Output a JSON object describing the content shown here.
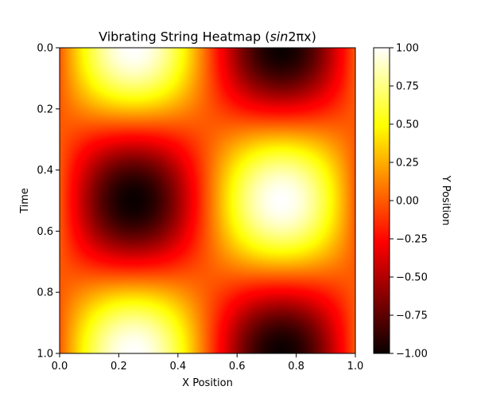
{
  "chart_data": {
    "type": "heatmap",
    "title_prefix": "Vibrating String Heatmap (",
    "title_math": "sin",
    "title_math2": "2πx",
    "title_suffix": ")",
    "xlabel": "X Position",
    "ylabel": "Time",
    "colorbar_label": "Y Position",
    "colormap": "hot",
    "function": "y = sin(2πx) · cos(2πt)",
    "xlim": [
      0.0,
      1.0
    ],
    "ylim": [
      1.0,
      0.0
    ],
    "clim": [
      -1.0,
      1.0
    ],
    "x_ticks": [
      "0.0",
      "0.2",
      "0.4",
      "0.6",
      "0.8",
      "1.0"
    ],
    "x_tick_values": [
      0.0,
      0.2,
      0.4,
      0.6,
      0.8,
      1.0
    ],
    "y_ticks": [
      "0.0",
      "0.2",
      "0.4",
      "0.6",
      "0.8",
      "1.0"
    ],
    "y_tick_values": [
      0.0,
      0.2,
      0.4,
      0.6,
      0.8,
      1.0
    ],
    "colorbar_ticks": [
      "1.00",
      "0.75",
      "0.50",
      "0.25",
      "0.00",
      "−0.25",
      "−0.50",
      "−0.75",
      "−1.00"
    ],
    "colorbar_tick_values": [
      1.0,
      0.75,
      0.5,
      0.25,
      0.0,
      -0.25,
      -0.5,
      -0.75,
      -1.0
    ],
    "grid": false
  }
}
